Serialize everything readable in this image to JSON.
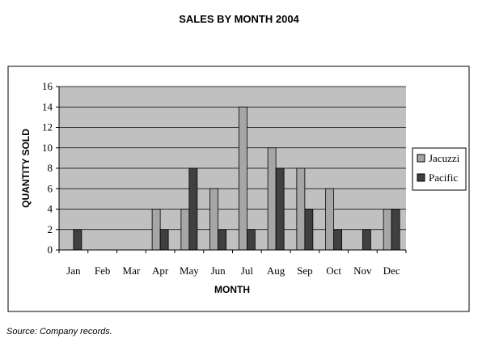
{
  "chart_data": {
    "type": "bar",
    "title": "SALES BY MONTH 2004",
    "xlabel": "MONTH",
    "ylabel": "QUANTITY SOLD",
    "categories": [
      "Jan",
      "Feb",
      "Mar",
      "Apr",
      "May",
      "Jun",
      "Jul",
      "Aug",
      "Sep",
      "Oct",
      "Nov",
      "Dec"
    ],
    "series": [
      {
        "name": "Jacuzzi",
        "values": [
          0,
          0,
          0,
          4,
          4,
          6,
          14,
          10,
          8,
          6,
          0,
          4
        ],
        "color": "#a6a6a6"
      },
      {
        "name": "Pacific",
        "values": [
          2,
          0,
          0,
          2,
          8,
          2,
          2,
          8,
          4,
          2,
          2,
          4
        ],
        "color": "#404040"
      }
    ],
    "ylim": [
      0,
      16
    ],
    "yticks": [
      "0",
      "2",
      "4",
      "6",
      "8",
      "10",
      "12",
      "14",
      "16"
    ],
    "grid": true,
    "plot_background": "#c0c0c0",
    "legend_position": "right"
  },
  "source": "Source:  Company records."
}
